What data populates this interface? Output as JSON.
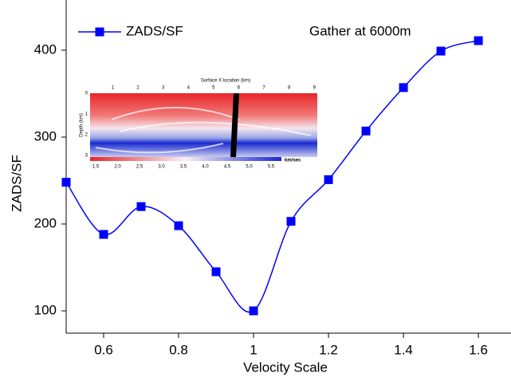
{
  "chart_data": {
    "type": "line",
    "x_label": "Velocity Scale",
    "y_label": "ZADS/SF",
    "annotation": "Gather at 6000m",
    "x": [
      0.5,
      0.6,
      0.7,
      0.8,
      0.9,
      1.0,
      1.1,
      1.2,
      1.3,
      1.4,
      1.5,
      1.6
    ],
    "series": [
      {
        "name": "ZADS/SF",
        "color": "#0000ff",
        "values": [
          248,
          188,
          220,
          198,
          145,
          100,
          203,
          251,
          307,
          357,
          399,
          411
        ]
      }
    ],
    "xlim": [
      0.5,
      1.687
    ],
    "xticks": [
      0.6,
      0.8,
      1.0,
      1.2,
      1.4,
      1.6
    ],
    "ylim": [
      74.3,
      457.8
    ],
    "yticks": [
      100,
      200,
      300,
      400
    ],
    "legend": "top-left",
    "inset": {
      "title": "Surface X location (km)",
      "xticks": [
        1,
        2,
        3,
        4,
        5,
        6,
        7,
        8,
        9
      ],
      "y_label": "Depth (km)",
      "yticks": [
        0,
        1,
        2,
        3
      ],
      "colorbar_ticks": [
        1.5,
        {
          "value": 2.0,
          "label": "2.0"
        },
        2.5,
        {
          "value": 3.0,
          "label": "3.0"
        },
        3.5,
        {
          "value": 4.0,
          "label": "4.0"
        },
        4.5,
        {
          "value": 5.0,
          "label": "5.0"
        },
        5.5
      ],
      "colorbar_label": "km/sec"
    }
  }
}
